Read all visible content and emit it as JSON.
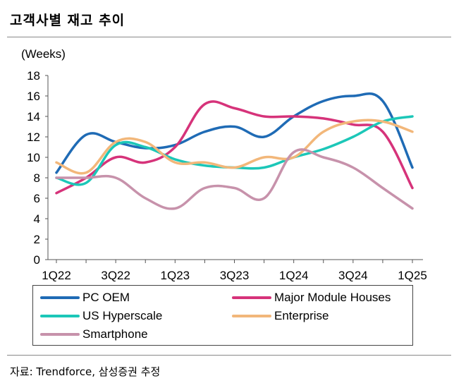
{
  "title": "고객사별 재고 추이",
  "source": "자료: Trendforce, 삼성증권 추정",
  "chart_data": {
    "type": "line",
    "ylabel": "(Weeks)",
    "ylim": [
      0,
      18
    ],
    "yticks": [
      0,
      2,
      4,
      6,
      8,
      10,
      12,
      14,
      16,
      18
    ],
    "x": [
      "1Q22",
      "2Q22",
      "3Q22",
      "4Q22",
      "1Q23",
      "2Q23",
      "3Q23",
      "4Q23",
      "1Q24",
      "2Q24",
      "3Q24",
      "4Q24",
      "1Q25"
    ],
    "xtick_labels": [
      "1Q22",
      "3Q22",
      "1Q23",
      "3Q23",
      "1Q24",
      "3Q24",
      "1Q25"
    ],
    "grid": false,
    "legend": "bottom",
    "series": [
      {
        "name": "PC OEM",
        "color": "#1f6bb5",
        "values": [
          8.5,
          12.2,
          11.5,
          10.9,
          11.2,
          12.5,
          13.0,
          12.0,
          14.0,
          15.5,
          16.0,
          15.5,
          9.0
        ]
      },
      {
        "name": "Major Module Houses",
        "color": "#d6337a",
        "values": [
          6.5,
          8.0,
          10.0,
          9.5,
          11.0,
          15.2,
          14.8,
          14.0,
          14.0,
          13.8,
          13.2,
          12.5,
          7.0
        ]
      },
      {
        "name": "US Hyperscale",
        "color": "#1cc7b8",
        "values": [
          8.0,
          7.5,
          11.2,
          11.0,
          9.8,
          9.2,
          9.0,
          9.0,
          10.0,
          10.8,
          12.0,
          13.5,
          14.0
        ]
      },
      {
        "name": "Enterprise",
        "color": "#f2b77a",
        "values": [
          9.5,
          8.5,
          11.5,
          11.5,
          9.5,
          9.5,
          9.0,
          10.0,
          10.0,
          12.5,
          13.5,
          13.5,
          12.5
        ]
      },
      {
        "name": "Smartphone",
        "color": "#c792ab",
        "values": [
          8.0,
          8.0,
          8.0,
          6.0,
          5.0,
          7.0,
          7.0,
          6.0,
          10.5,
          10.0,
          9.0,
          7.0,
          5.0
        ]
      }
    ]
  }
}
